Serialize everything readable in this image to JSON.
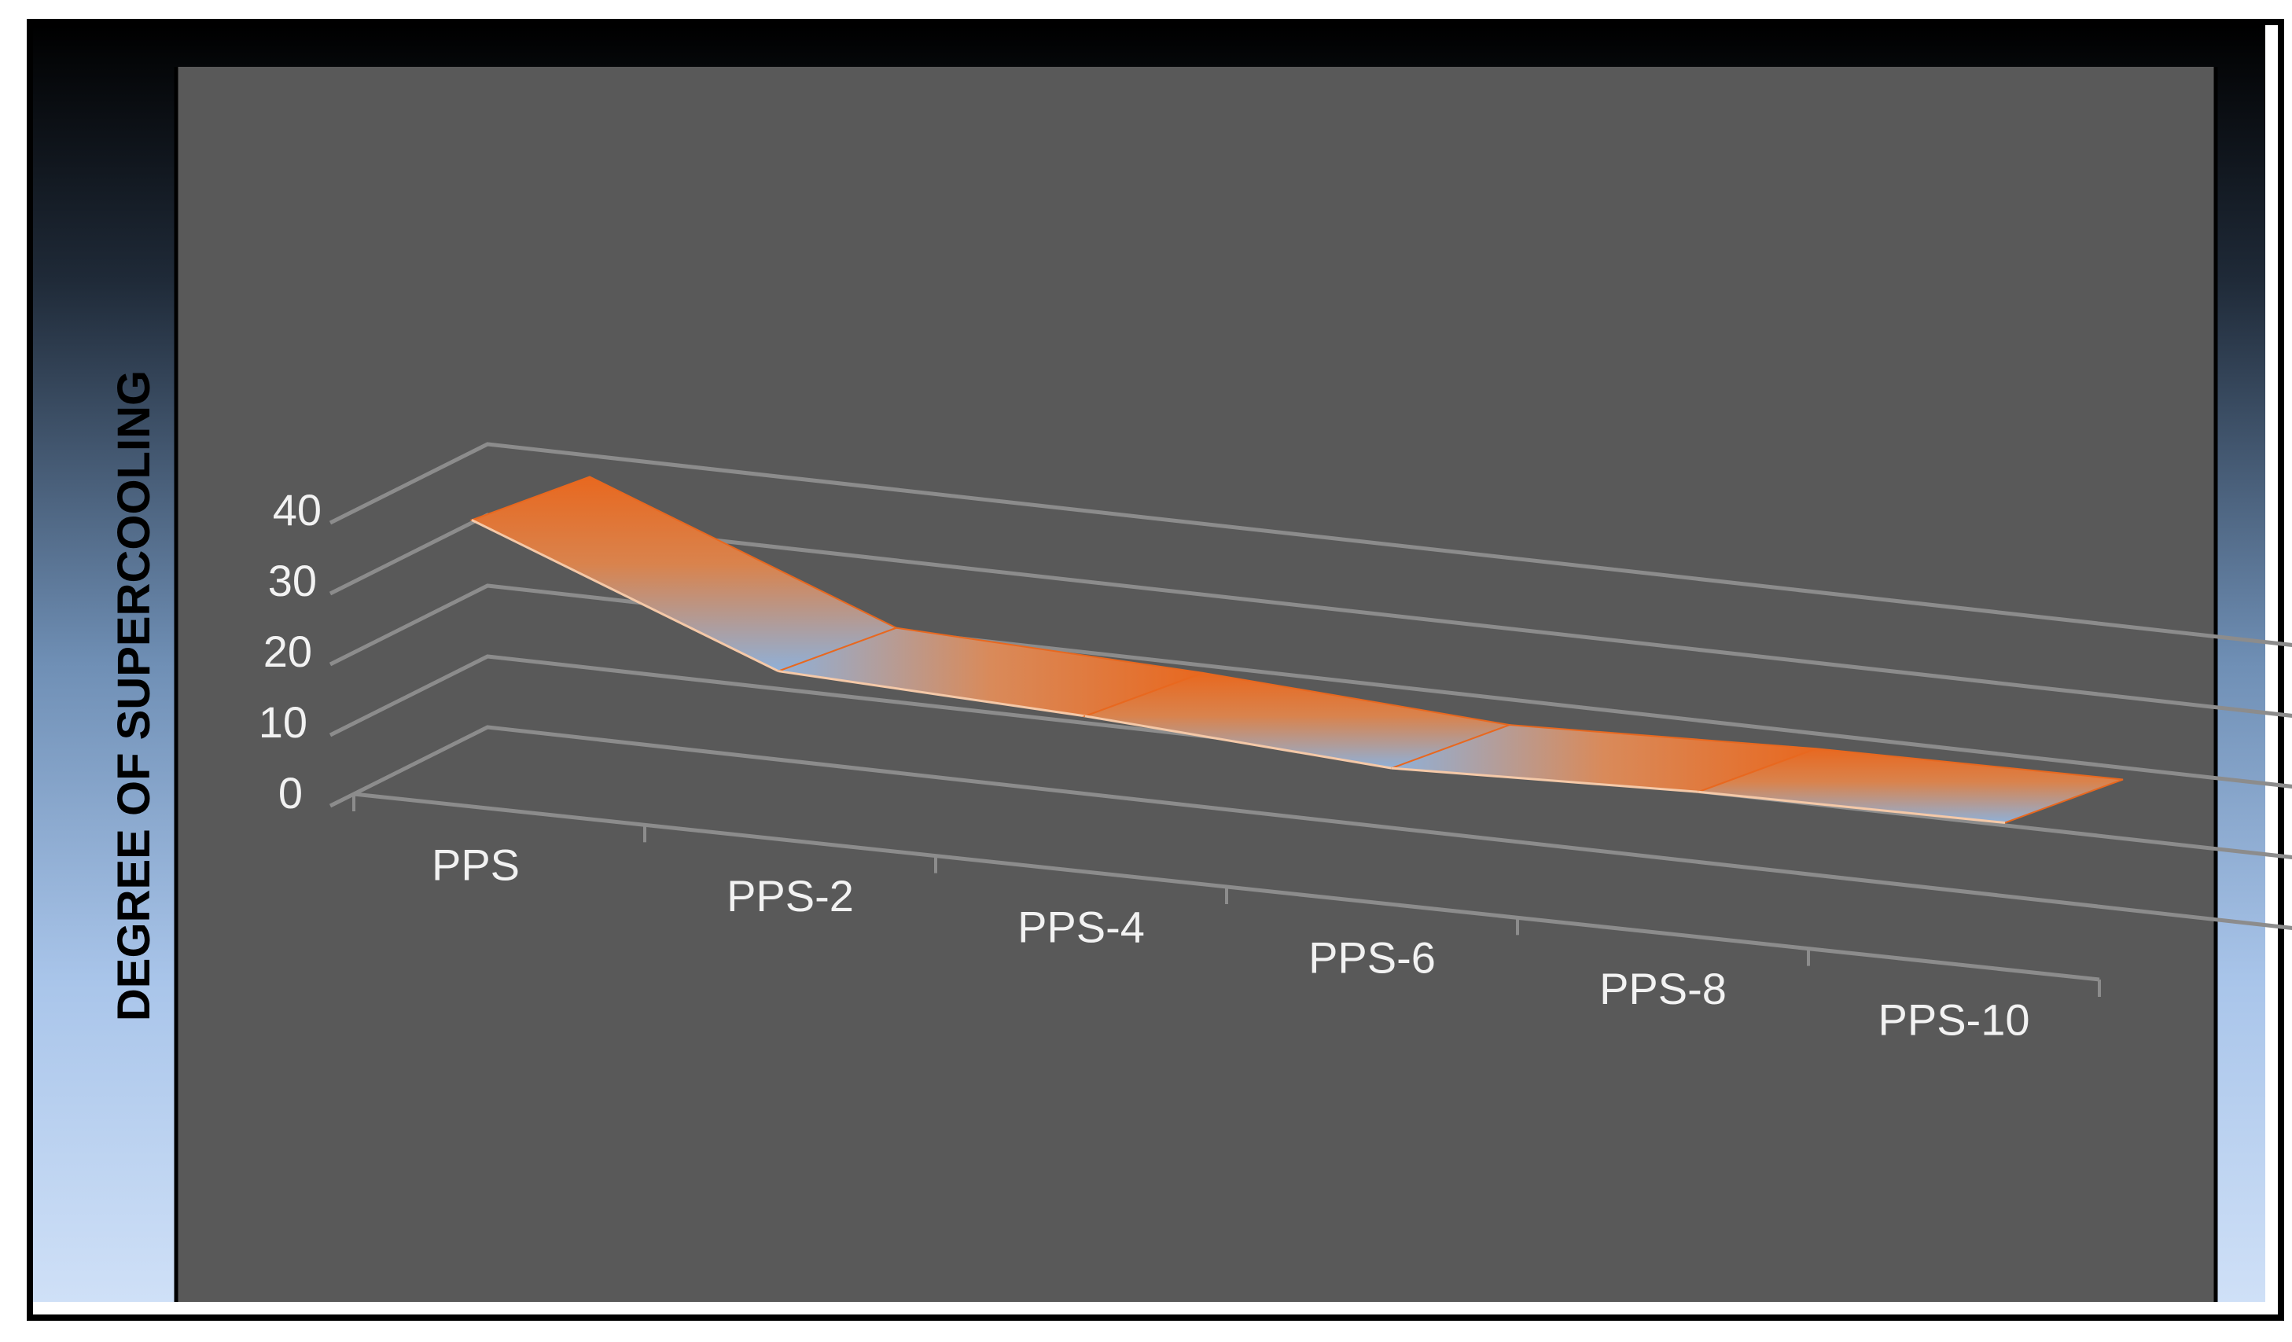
{
  "chart_data": {
    "type": "area",
    "variant": "3d-line-ribbon",
    "title": "",
    "xlabel": "",
    "ylabel": "DEGREE OF SUPERCOOLING",
    "categories": [
      "PPS",
      "PPS-2",
      "PPS-4",
      "PPS-6",
      "PPS-8",
      "PPS-10"
    ],
    "series": [
      {
        "values": [
          36.5,
          19.5,
          17.5,
          14.5,
          15.5,
          15.5
        ]
      }
    ],
    "ylim": [
      0,
      40
    ],
    "yticks": [
      "0",
      "10",
      "20",
      "30",
      "40"
    ],
    "grid": true,
    "legend": "none",
    "colors": {
      "plot_background": "#595959",
      "outer_gradient_top": "#000000",
      "outer_gradient_bottom": "#c7dcf5",
      "gridline": "#8c8c8c",
      "ribbon_orange": "#e8681f",
      "ribbon_blue": "#8fb0d8",
      "tick_text": "#f2f2f2",
      "ylabel_text": "#000000"
    }
  }
}
